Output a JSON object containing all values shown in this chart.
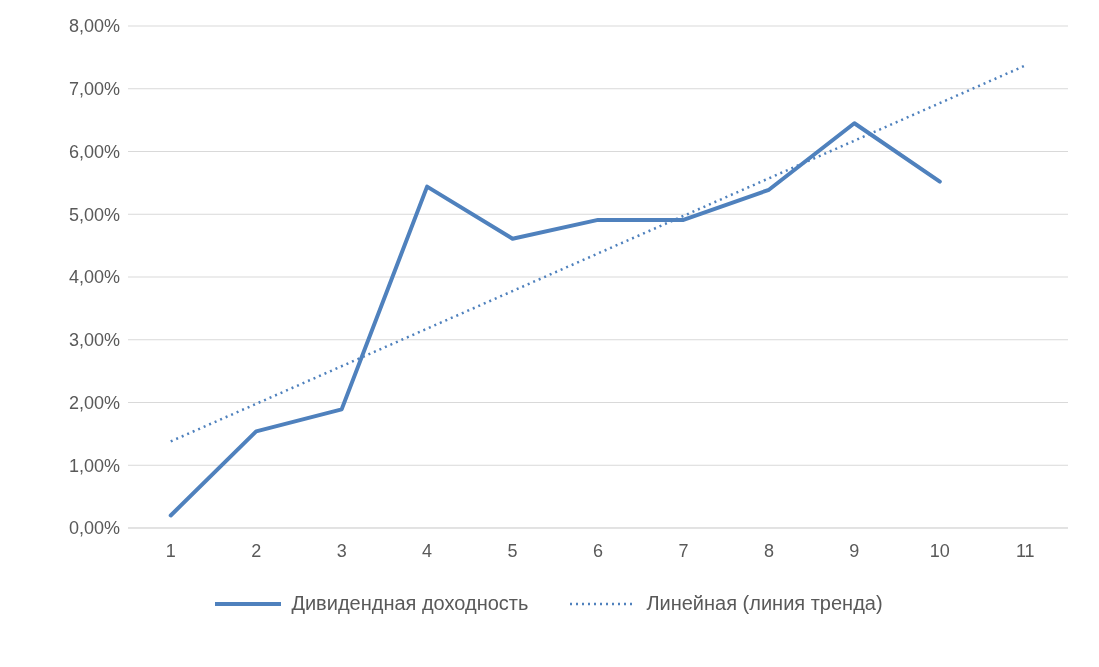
{
  "chart_data": {
    "type": "line",
    "x": [
      1,
      2,
      3,
      4,
      5,
      6,
      7,
      8,
      9,
      10
    ],
    "series": [
      {
        "name": "Дивидендная доходность",
        "color": "#4f81bd",
        "values": [
          0.2,
          1.54,
          1.89,
          5.44,
          4.61,
          4.91,
          4.91,
          5.39,
          6.45,
          5.52
        ],
        "line_style": "solid"
      },
      {
        "name": "Линейная (линия тренда)",
        "type": "line",
        "color": "#4f81bd",
        "x": [
          1,
          11
        ],
        "values": [
          1.38,
          7.37
        ],
        "line_style": "dotted"
      }
    ],
    "xlim": [
      0.5,
      11.5
    ],
    "xticks": [
      1,
      2,
      3,
      4,
      5,
      6,
      7,
      8,
      9,
      10,
      11
    ],
    "ylim": [
      0,
      8
    ],
    "yticks": [
      {
        "value": 0,
        "label": "0,00%"
      },
      {
        "value": 1,
        "label": "1,00%"
      },
      {
        "value": 2,
        "label": "2,00%"
      },
      {
        "value": 3,
        "label": "3,00%"
      },
      {
        "value": 4,
        "label": "4,00%"
      },
      {
        "value": 5,
        "label": "5,00%"
      },
      {
        "value": 6,
        "label": "6,00%"
      },
      {
        "value": 7,
        "label": "7,00%"
      },
      {
        "value": 8,
        "label": "8,00%"
      }
    ],
    "grid": "y",
    "legend": "bottom",
    "marker": "none"
  }
}
